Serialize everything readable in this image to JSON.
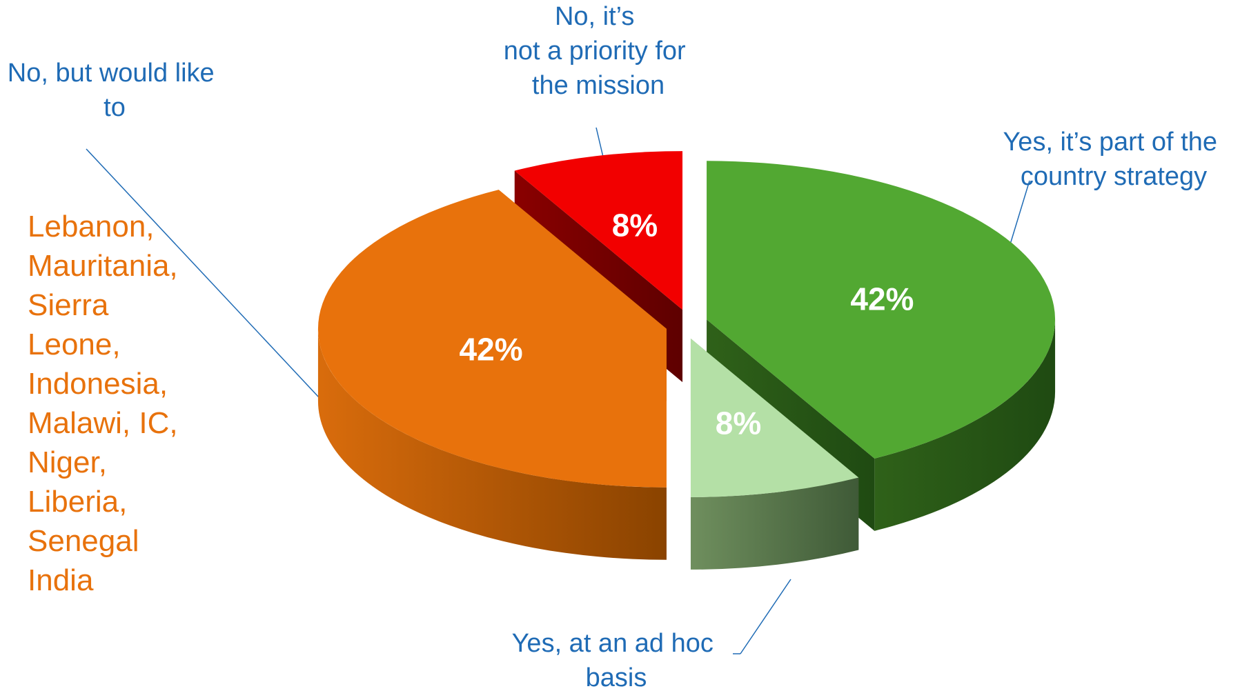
{
  "chart_data": {
    "type": "pie",
    "title": "",
    "categories": [
      "Yes, it’s part of the country strategy",
      "Yes, at an ad hoc basis",
      "No, but would like to",
      "No, it’s not a priority for the mission"
    ],
    "values": [
      42,
      8,
      42,
      8
    ],
    "value_labels": [
      "42%",
      "8%",
      "42%",
      "8%"
    ],
    "colors": [
      "#52a832",
      "#b4e0a6",
      "#e8720c",
      "#f20000"
    ],
    "legend": "none",
    "annotation": {
      "target_category": "No, but would like to",
      "lines": [
        "Lebanon,",
        "Mauritania,",
        "Sierra",
        "Leone,",
        "Indonesia,",
        "Malawi, IC,",
        "Niger,",
        "Liberia,",
        "Senegal",
        "India"
      ]
    }
  },
  "colors": {
    "label_text": "#1f6bb5",
    "annotation_text": "#e8720c"
  }
}
